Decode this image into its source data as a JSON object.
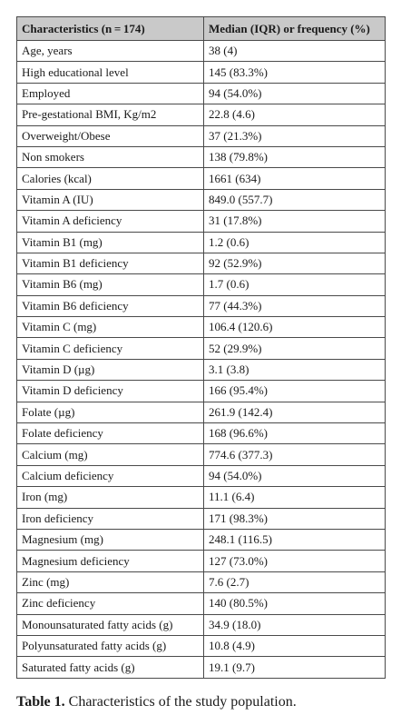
{
  "table": {
    "headers": [
      "Characteristics (n = 174)",
      "Median (IQR) or frequency (%)"
    ],
    "rows": [
      [
        "Age, years",
        "38 (4)"
      ],
      [
        "High educational level",
        "145 (83.3%)"
      ],
      [
        "Employed",
        "94 (54.0%)"
      ],
      [
        "Pre-gestational BMI, Kg/m2",
        "22.8 (4.6)"
      ],
      [
        "Overweight/Obese",
        "37 (21.3%)"
      ],
      [
        "Non smokers",
        "138 (79.8%)"
      ],
      [
        "Calories (kcal)",
        "1661 (634)"
      ],
      [
        "Vitamin A (IU)",
        "849.0 (557.7)"
      ],
      [
        "Vitamin A deficiency",
        "31 (17.8%)"
      ],
      [
        "Vitamin B1 (mg)",
        "1.2 (0.6)"
      ],
      [
        "Vitamin B1 deficiency",
        "92 (52.9%)"
      ],
      [
        "Vitamin B6 (mg)",
        "1.7 (0.6)"
      ],
      [
        "Vitamin B6 deficiency",
        "77 (44.3%)"
      ],
      [
        "Vitamin C (mg)",
        "106.4 (120.6)"
      ],
      [
        "Vitamin C deficiency",
        "52 (29.9%)"
      ],
      [
        "Vitamin D (µg)",
        "3.1 (3.8)"
      ],
      [
        "Vitamin D deficiency",
        "166 (95.4%)"
      ],
      [
        "Folate (µg)",
        "261.9 (142.4)"
      ],
      [
        "Folate deficiency",
        "168 (96.6%)"
      ],
      [
        "Calcium (mg)",
        "774.6 (377.3)"
      ],
      [
        "Calcium deficiency",
        "94 (54.0%)"
      ],
      [
        "Iron (mg)",
        "11.1 (6.4)"
      ],
      [
        "Iron deficiency",
        "171 (98.3%)"
      ],
      [
        "Magnesium (mg)",
        "248.1 (116.5)"
      ],
      [
        "Magnesium deficiency",
        "127 (73.0%)"
      ],
      [
        "Zinc (mg)",
        "7.6 (2.7)"
      ],
      [
        "Zinc deficiency",
        "140 (80.5%)"
      ],
      [
        "Monounsaturated fatty acids (g)",
        "34.9 (18.0)"
      ],
      [
        "Polyunsaturated fatty acids (g)",
        "10.8 (4.9)"
      ],
      [
        "Saturated fatty acids (g)",
        "19.1 (9.7)"
      ]
    ]
  },
  "caption": {
    "label": "Table 1.",
    "text": "Characteristics of the study population."
  },
  "colors": {
    "header_background": "#c9c9c9",
    "border": "#4a4a4a",
    "text": "#1a1a1a"
  }
}
